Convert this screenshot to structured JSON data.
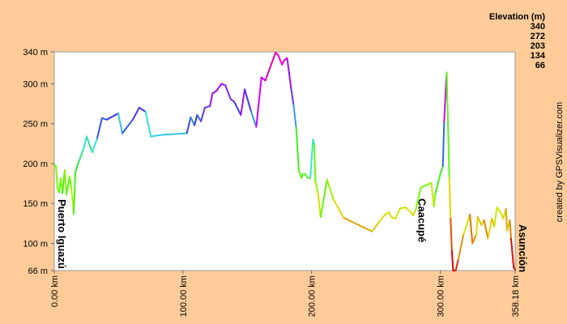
{
  "chart_data": {
    "type": "elevation-profile",
    "legend": {
      "title": "Elevation (m)",
      "values": [
        340,
        272,
        203,
        134,
        66
      ],
      "colors": [
        "#cc0099",
        "#6633cc",
        "#33cc33",
        "#cccc00",
        "#cc0000"
      ]
    },
    "credit": "created by GPSVisualizer.com",
    "xlim": [
      0,
      358.18
    ],
    "xticks": [
      {
        "value": 0,
        "label": "0.00 km"
      },
      {
        "value": 100,
        "label": "100.00 km"
      },
      {
        "value": 200,
        "label": "200.00 km"
      },
      {
        "value": 300,
        "label": "300.00 km"
      },
      {
        "value": 358.18,
        "label": "358.18 km"
      }
    ],
    "ylim": [
      66,
      340
    ],
    "yticks": [
      {
        "value": 66,
        "label": "66 m"
      },
      {
        "value": 100,
        "label": "100 m"
      },
      {
        "value": 150,
        "label": "150 m"
      },
      {
        "value": 200,
        "label": "200 m"
      },
      {
        "value": 250,
        "label": "250 m"
      },
      {
        "value": 300,
        "label": "300 m"
      },
      {
        "value": 340,
        "label": "340 m"
      }
    ],
    "annotations": [
      {
        "text": "Puerto Iguazú",
        "x": 0
      },
      {
        "text": "Caacupé",
        "x": 293
      },
      {
        "text": "Asunción",
        "x": 358.18
      }
    ],
    "x": [
      0,
      1.3,
      2.5,
      3.8,
      5,
      6.3,
      8.2,
      9.4,
      12,
      13.2,
      14.5,
      15.1,
      16.4,
      18.9,
      21.4,
      23.3,
      25.2,
      27.7,
      29.6,
      33.4,
      37.1,
      40.9,
      49.7,
      52.9,
      61,
      66,
      71,
      75,
      83.7,
      103,
      106,
      109,
      111,
      114,
      117,
      121,
      123,
      126,
      130,
      133,
      137,
      140,
      145,
      148,
      153,
      157,
      161,
      164,
      172,
      174,
      177,
      179,
      181,
      184,
      186,
      188,
      190,
      192,
      193,
      195,
      197,
      199,
      201,
      202,
      203,
      205,
      207,
      212,
      217,
      225,
      247,
      252,
      257,
      260,
      262,
      265,
      269,
      273,
      277,
      279,
      281,
      285,
      293,
      295,
      296,
      300,
      302,
      303,
      305,
      307,
      308,
      309,
      310,
      312,
      314,
      318,
      323,
      325,
      328,
      329,
      332,
      334,
      337,
      340,
      342,
      344,
      347,
      349,
      351,
      352,
      354,
      355,
      357,
      358.18
    ],
    "values": [
      198,
      197,
      168,
      164,
      182,
      163,
      192,
      161,
      184,
      170,
      151,
      137,
      189,
      202,
      212,
      222,
      234,
      222,
      214,
      232,
      257,
      255,
      263,
      238,
      255,
      270,
      265,
      234,
      236,
      238,
      258,
      248,
      261,
      253,
      270,
      272,
      288,
      291,
      300,
      298,
      281,
      277,
      261,
      293,
      265,
      246,
      308,
      304,
      339,
      336,
      324,
      330,
      332,
      295,
      273,
      245,
      192,
      182,
      186,
      187,
      182,
      182,
      230,
      224,
      177,
      163,
      133,
      180,
      155,
      132,
      115,
      126,
      136,
      139,
      133,
      131,
      144,
      145,
      139,
      135,
      143,
      170,
      176,
      146,
      161,
      187,
      197,
      253,
      314,
      182,
      131,
      90,
      66,
      66,
      80,
      111,
      136,
      100,
      111,
      133,
      123,
      129,
      106,
      131,
      121,
      145,
      139,
      131,
      143,
      116,
      129,
      106,
      70,
      67
    ]
  }
}
